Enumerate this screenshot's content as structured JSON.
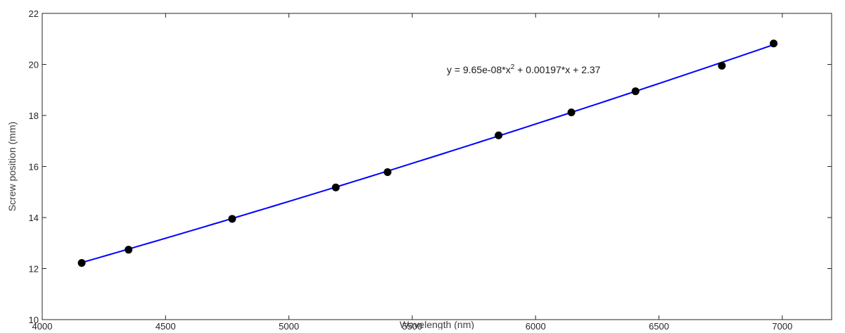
{
  "chart_data": {
    "type": "scatter",
    "title": "",
    "xlabel": "Wavelength (nm)",
    "ylabel": "Screw position (mm)",
    "xlim": [
      4000,
      7200
    ],
    "ylim": [
      10,
      22
    ],
    "xticks": [
      4000,
      4500,
      5000,
      5500,
      6000,
      6500,
      7000
    ],
    "yticks": [
      10,
      12,
      14,
      16,
      18,
      20,
      22
    ],
    "grid": false,
    "legend": "none",
    "series": [
      {
        "kind": "scatter",
        "marker": "filled-circle",
        "color": "#000000",
        "x": [
          4160,
          4350,
          4770,
          5190,
          5400,
          5850,
          6145,
          6405,
          6755,
          6965
        ],
        "y": [
          12.22,
          12.74,
          13.95,
          15.18,
          15.78,
          17.22,
          18.12,
          18.95,
          19.95,
          20.82
        ]
      },
      {
        "kind": "fit-line",
        "color": "#0000ff",
        "x_range": [
          4160,
          6965
        ],
        "coefficients": {
          "a": 9.65e-08,
          "b": 0.00197,
          "c": 2.37
        }
      }
    ],
    "annotations": [
      {
        "text_prefix": "y = 9.65e-08*x",
        "superscript": "2",
        "text_suffix": " + 0.00197*x + 2.37",
        "x": 5640,
        "y": 19.8
      }
    ]
  }
}
